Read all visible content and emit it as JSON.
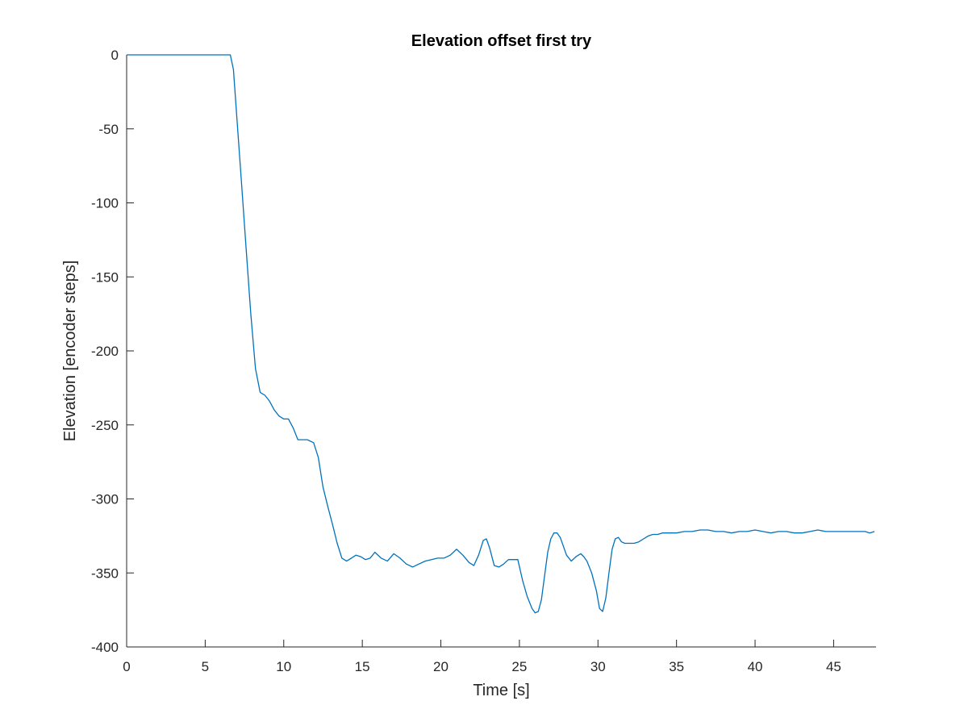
{
  "chart_data": {
    "type": "line",
    "title": "Elevation offset first try",
    "xlabel": "Time [s]",
    "ylabel": "Elevation [encoder steps]",
    "xlim": [
      0,
      47.7
    ],
    "ylim": [
      -400,
      0
    ],
    "xticks": [
      0,
      5,
      10,
      15,
      20,
      25,
      30,
      35,
      40,
      45
    ],
    "yticks": [
      0,
      -50,
      -100,
      -150,
      -200,
      -250,
      -300,
      -350,
      -400
    ],
    "grid": false,
    "legend": "none",
    "colors": {
      "line": "#0072BD",
      "axes": "#262626",
      "background": "#ffffff"
    },
    "series": [
      {
        "x": [
          0,
          6.6,
          6.8,
          7.0,
          7.3,
          7.6,
          7.9,
          8.2,
          8.5,
          8.8,
          9.1,
          9.4,
          9.7,
          10.0,
          10.3,
          10.6,
          10.9,
          11.2,
          11.5,
          11.9,
          12.2,
          12.5,
          12.8,
          13.1,
          13.4,
          13.7,
          14.0,
          14.3,
          14.6,
          14.9,
          15.2,
          15.5,
          15.8,
          16.2,
          16.6,
          17.0,
          17.4,
          17.8,
          18.2,
          18.6,
          19.0,
          19.4,
          19.8,
          20.2,
          20.6,
          21.0,
          21.4,
          21.8,
          22.1,
          22.4,
          22.7,
          22.9,
          23.1,
          23.4,
          23.7,
          24.0,
          24.3,
          24.6,
          24.9,
          25.2,
          25.5,
          25.8,
          26.0,
          26.2,
          26.4,
          26.6,
          26.8,
          27.0,
          27.2,
          27.4,
          27.6,
          27.8,
          28.0,
          28.3,
          28.6,
          28.9,
          29.1,
          29.3,
          29.6,
          29.9,
          30.1,
          30.3,
          30.5,
          30.7,
          30.9,
          31.1,
          31.3,
          31.5,
          31.7,
          32.0,
          32.3,
          32.6,
          32.9,
          33.2,
          33.5,
          33.8,
          34.1,
          34.4,
          34.7,
          35.0,
          35.5,
          36.0,
          36.5,
          37.0,
          37.5,
          38.0,
          38.5,
          39.0,
          39.5,
          40.0,
          40.5,
          41.0,
          41.5,
          42.0,
          42.5,
          43.0,
          43.5,
          44.0,
          44.5,
          45.0,
          45.5,
          46.0,
          46.5,
          47.0,
          47.3,
          47.6
        ],
        "y": [
          0,
          0,
          -10,
          -40,
          -85,
          -130,
          -175,
          -212,
          -228,
          -230,
          -234,
          -240,
          -244,
          -246,
          -246,
          -252,
          -260,
          -260,
          -260,
          -262,
          -272,
          -292,
          -305,
          -317,
          -330,
          -340,
          -342,
          -340,
          -338,
          -339,
          -341,
          -340,
          -336,
          -340,
          -342,
          -337,
          -340,
          -344,
          -346,
          -344,
          -342,
          -341,
          -340,
          -340,
          -338,
          -334,
          -338,
          -343,
          -345,
          -338,
          -328,
          -327,
          -333,
          -345,
          -346,
          -344,
          -341,
          -341,
          -341,
          -355,
          -366,
          -374,
          -377,
          -376,
          -368,
          -352,
          -336,
          -327,
          -323,
          -323,
          -326,
          -332,
          -338,
          -342,
          -339,
          -337,
          -339,
          -342,
          -350,
          -362,
          -374,
          -376,
          -367,
          -350,
          -334,
          -327,
          -326,
          -329,
          -330,
          -330,
          -330,
          -329,
          -327,
          -325,
          -324,
          -324,
          -323,
          -323,
          -323,
          -323,
          -322,
          -322,
          -321,
          -321,
          -322,
          -322,
          -323,
          -322,
          -322,
          -321,
          -322,
          -323,
          -322,
          -322,
          -323,
          -323,
          -322,
          -321,
          -322,
          -322,
          -322,
          -322,
          -322,
          -322,
          -323,
          -322
        ]
      }
    ]
  }
}
